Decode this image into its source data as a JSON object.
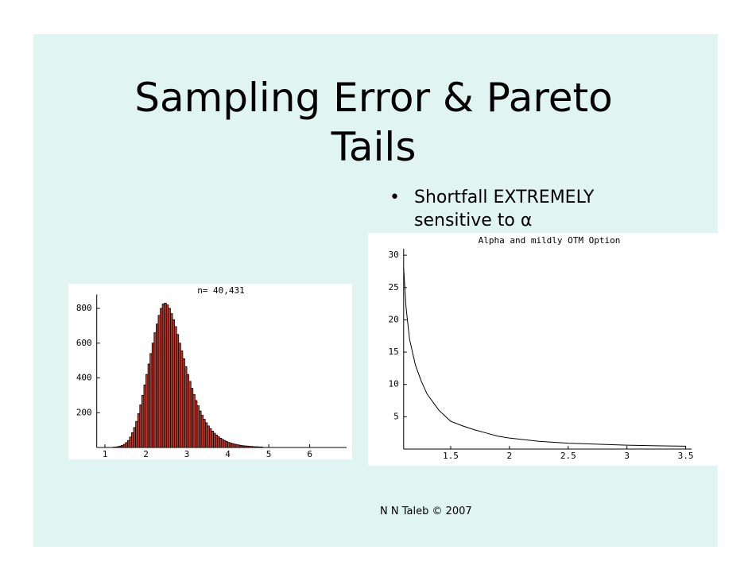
{
  "title": "Sampling Error & Pareto Tails",
  "bullet": "Shortfall  EXTREMELY sensitive to α",
  "footer": "N N Taleb © 2007",
  "chart_data": [
    {
      "type": "histogram",
      "title": "n= 40,431",
      "color": "#c0392b",
      "bins": [
        1.2,
        1.25,
        1.3,
        1.35,
        1.4,
        1.45,
        1.5,
        1.55,
        1.6,
        1.65,
        1.7,
        1.75,
        1.8,
        1.85,
        1.9,
        1.95,
        2.0,
        2.05,
        2.1,
        2.15,
        2.2,
        2.25,
        2.3,
        2.35,
        2.4,
        2.45,
        2.5,
        2.55,
        2.6,
        2.65,
        2.7,
        2.75,
        2.8,
        2.85,
        2.9,
        2.95,
        3.0,
        3.05,
        3.1,
        3.15,
        3.2,
        3.25,
        3.3,
        3.35,
        3.4,
        3.45,
        3.5,
        3.55,
        3.6,
        3.65,
        3.7,
        3.75,
        3.8,
        3.85,
        3.9,
        3.95,
        4.0,
        4.05,
        4.1,
        4.15,
        4.2,
        4.25,
        4.3,
        4.35,
        4.4,
        4.45,
        4.5,
        4.55,
        4.6,
        4.65,
        4.7,
        4.75,
        4.8,
        4.85
      ],
      "values": [
        2,
        3,
        5,
        8,
        12,
        18,
        28,
        40,
        60,
        85,
        115,
        150,
        195,
        245,
        300,
        360,
        420,
        480,
        540,
        600,
        660,
        710,
        760,
        800,
        825,
        830,
        820,
        800,
        770,
        735,
        695,
        650,
        600,
        555,
        510,
        465,
        420,
        380,
        340,
        305,
        270,
        240,
        210,
        185,
        162,
        142,
        124,
        108,
        94,
        82,
        71,
        61,
        53,
        46,
        40,
        34,
        29,
        25,
        22,
        19,
        16,
        14,
        12,
        10,
        9,
        8,
        7,
        6,
        5,
        4,
        4,
        3,
        3
      ],
      "xlim": [
        0.8,
        6.9
      ],
      "xticks": [
        1,
        2,
        3,
        4,
        5,
        6
      ],
      "ylim": [
        0,
        880
      ],
      "yticks": [
        200,
        400,
        600,
        800
      ]
    },
    {
      "type": "line",
      "title": "Alpha and mildly OTM Option",
      "color": "#000000",
      "x": [
        1.1,
        1.12,
        1.15,
        1.2,
        1.25,
        1.3,
        1.4,
        1.5,
        1.6,
        1.7,
        1.8,
        1.9,
        2.0,
        2.25,
        2.5,
        2.75,
        3.0,
        3.25,
        3.5
      ],
      "values": [
        28,
        22,
        17,
        13,
        10.5,
        8.5,
        6,
        4.3,
        3.6,
        3,
        2.5,
        2,
        1.7,
        1.2,
        0.9,
        0.75,
        0.6,
        0.5,
        0.45
      ],
      "xlim": [
        1.1,
        3.55
      ],
      "xticks": [
        1.5,
        2,
        2.5,
        3,
        3.5
      ],
      "ylim": [
        0,
        31
      ],
      "yticks": [
        5,
        10,
        15,
        20,
        25,
        30
      ]
    }
  ]
}
